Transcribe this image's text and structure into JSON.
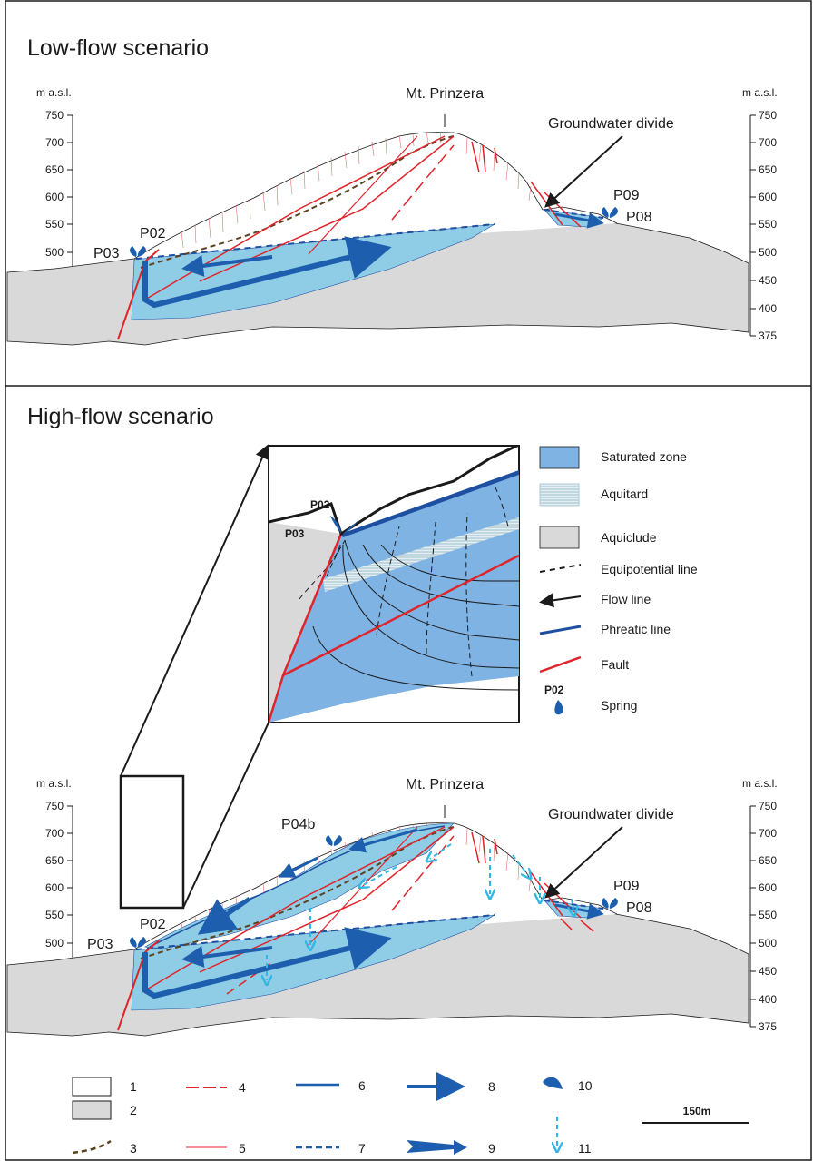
{
  "panels": {
    "low": {
      "title": "Low-flow scenario"
    },
    "high": {
      "title": "High-flow scenario"
    }
  },
  "axis": {
    "unit": "m a.s.l.",
    "ticks": [
      "750",
      "700",
      "650",
      "600",
      "550",
      "500",
      "450",
      "400",
      "375"
    ]
  },
  "labels": {
    "summit": "Mt. Prinzera",
    "divide": "Groundwater divide",
    "springs": [
      "P03",
      "P02",
      "P09",
      "P08",
      "P04b"
    ]
  },
  "inset_legend": [
    "Saturated zone",
    "Aquitard",
    "Aquiclude",
    "Equipotential line",
    "Flow line",
    "Phreatic line",
    "Fault",
    "Spring"
  ],
  "inset_spring_code": "P02",
  "inset_springs": [
    "P02",
    "P03"
  ],
  "legend_numbers": [
    "1",
    "2",
    "3",
    "4",
    "5",
    "6",
    "7",
    "8",
    "9",
    "10",
    "11"
  ],
  "scale_bar": "150m",
  "colors": {
    "saturated": "#7fb3e3",
    "saturated_light": "#8fcde6",
    "aquiclude": "#d9d9d9",
    "fault": "#e0242b",
    "phreatic": "#1e4fa0",
    "flow_arrow": "#1d5fae",
    "seep_arrow": "#30b7e4",
    "bedding": "#5a4321",
    "weathered": "#e36d6d"
  }
}
